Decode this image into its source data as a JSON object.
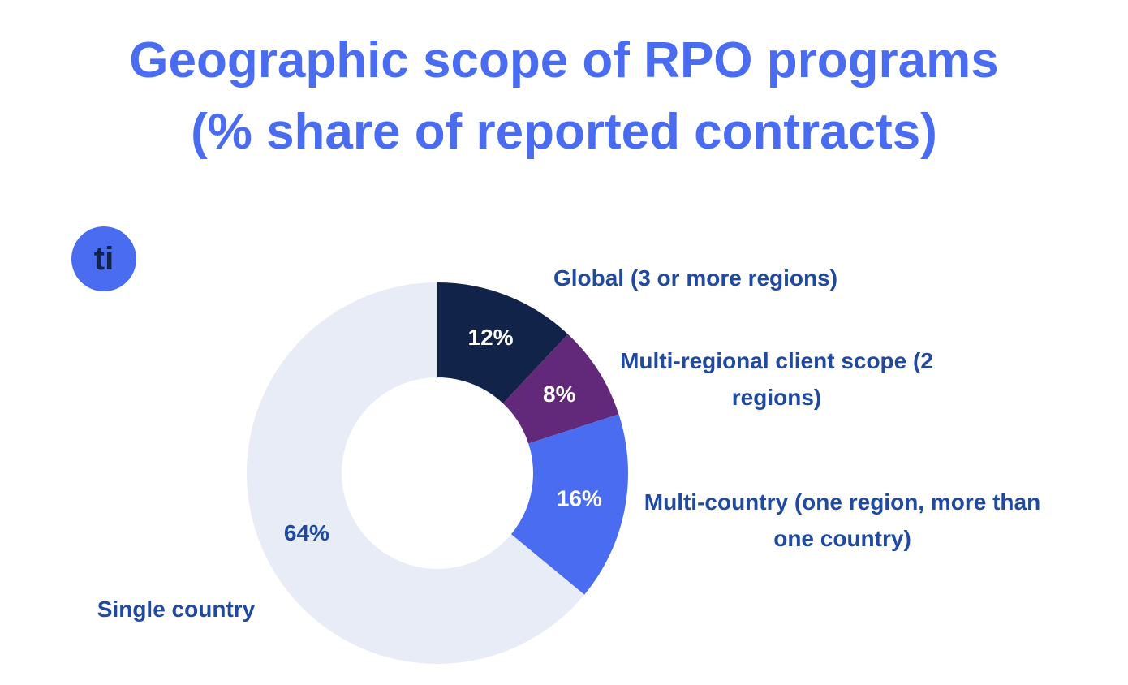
{
  "logo": "ti",
  "chart_data": {
    "type": "donut",
    "title": "Geographic scope of RPO programs",
    "subtitle": "(% share of reported contracts)",
    "categories": [
      "Global (3 or more regions)",
      "Multi-regional client scope (2 regions)",
      "Multi-country (one region, more than one country)",
      "Single country"
    ],
    "values": [
      12,
      8,
      16,
      64
    ],
    "value_labels": [
      "12%",
      "8%",
      "16%",
      "64%"
    ],
    "colors": [
      "#12234a",
      "#62297a",
      "#4a6cf0",
      "#e8ecf6"
    ]
  }
}
